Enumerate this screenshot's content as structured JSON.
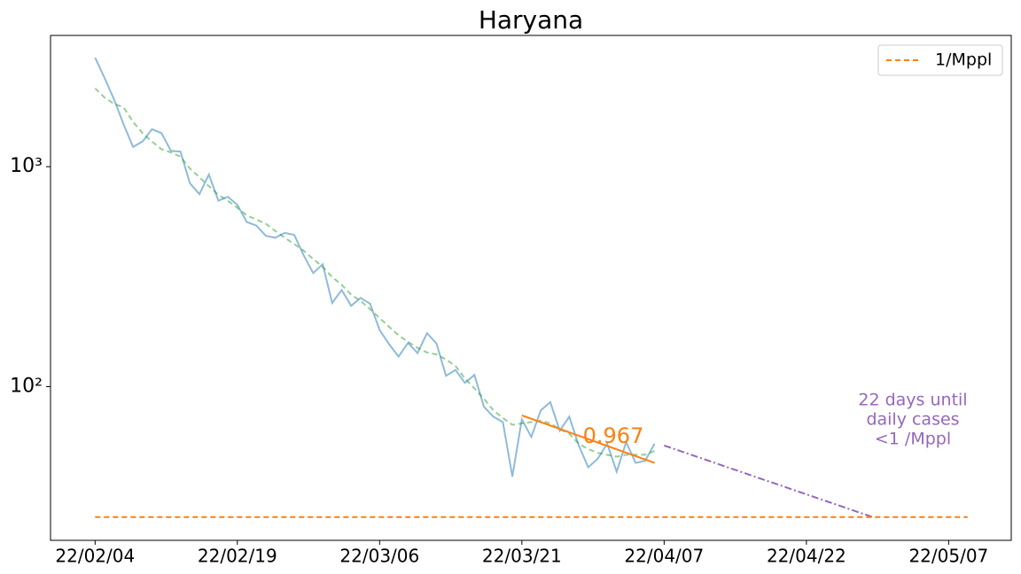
{
  "chart_data": {
    "type": "line",
    "title": "Haryana",
    "xlim": [
      -4.7,
      96.6
    ],
    "xticks": [
      {
        "value": 0,
        "label": "22/02/04"
      },
      {
        "value": 15,
        "label": "22/02/19"
      },
      {
        "value": 30,
        "label": "22/03/06"
      },
      {
        "value": 45,
        "label": "22/03/21"
      },
      {
        "value": 60,
        "label": "22/04/07"
      },
      {
        "value": 75,
        "label": "22/04/22"
      },
      {
        "value": 90,
        "label": "22/05/07"
      }
    ],
    "ylim": [
      20,
      3950
    ],
    "log_y": true,
    "yticks": [
      {
        "value": 100,
        "label": "10²"
      },
      {
        "value": 1000,
        "label": "10³"
      }
    ],
    "legend": "upper right",
    "series": [
      {
        "color": "#1f77b4",
        "style": "solid",
        "opacity": 0.5,
        "x": [
          0,
          1,
          2,
          3,
          4,
          5,
          6,
          7,
          8,
          9,
          10,
          11,
          12,
          13,
          14,
          15,
          16,
          17,
          18,
          19,
          20,
          21,
          22,
          23,
          24,
          25,
          26,
          27,
          28,
          29,
          30,
          31,
          32,
          33,
          34,
          35,
          36,
          37,
          38,
          39,
          40,
          41,
          42,
          43,
          44,
          45,
          46,
          47,
          48,
          49,
          50,
          51,
          52,
          53,
          54,
          55,
          56,
          57,
          58,
          59
        ],
        "values": [
          3130,
          2530,
          2020,
          1560,
          1230,
          1300,
          1480,
          1420,
          1180,
          1170,
          840,
          750,
          920,
          700,
          730,
          670,
          560,
          540,
          485,
          475,
          500,
          490,
          395,
          328,
          360,
          240,
          275,
          233,
          253,
          238,
          181,
          156,
          137,
          158,
          142,
          175,
          157,
          112,
          119,
          104,
          113,
          81,
          73,
          69,
          39,
          71,
          59,
          78,
          85,
          63,
          73,
          54,
          43,
          47,
          55,
          41,
          56,
          45,
          46,
          55
        ]
      },
      {
        "color": "#2ca02c",
        "style": "dashed",
        "opacity": 0.5,
        "x": [
          0,
          1,
          2,
          3,
          4,
          5,
          6,
          7,
          8,
          9,
          10,
          11,
          12,
          13,
          14,
          15,
          16,
          17,
          18,
          19,
          20,
          21,
          22,
          23,
          24,
          25,
          26,
          27,
          28,
          29,
          30,
          31,
          32,
          33,
          34,
          35,
          36,
          37,
          38,
          39,
          40,
          41,
          42,
          43,
          44,
          45,
          46,
          47,
          48,
          49,
          50,
          51,
          52,
          53,
          54,
          55,
          56,
          57,
          58,
          59
        ],
        "values": [
          2270,
          2060,
          1930,
          1860,
          1600,
          1420,
          1300,
          1200,
          1160,
          1110,
          980,
          895,
          815,
          745,
          700,
          650,
          600,
          575,
          550,
          510,
          475,
          445,
          415,
          380,
          350,
          315,
          290,
          262,
          245,
          225,
          205,
          187,
          171,
          160,
          150,
          143,
          140,
          133,
          124,
          109,
          98,
          88,
          78,
          72,
          67,
          68,
          69,
          70,
          68,
          64,
          61,
          55,
          52,
          50,
          49,
          48,
          49,
          49,
          49,
          51
        ]
      },
      {
        "color": "#ff7f0e",
        "style": "solid",
        "opacity": 1,
        "x": [
          45,
          59
        ],
        "values": [
          74,
          45
        ]
      },
      {
        "color": "#9467bd",
        "style": "dashdot",
        "opacity": 1,
        "x": [
          60,
          82
        ],
        "values": [
          54,
          25.5
        ]
      },
      {
        "name": "1/Mppl",
        "color": "#ff7f0e",
        "style": "dashed",
        "opacity": 1,
        "x": [
          0,
          92
        ],
        "values": [
          25.5,
          25.5
        ]
      }
    ],
    "annotations": [
      {
        "text": "0.967",
        "color": "#ff7f0e"
      },
      {
        "lines": [
          "22 days until",
          "daily cases",
          "<1 /Mppl"
        ],
        "color": "#9467bd"
      }
    ]
  }
}
